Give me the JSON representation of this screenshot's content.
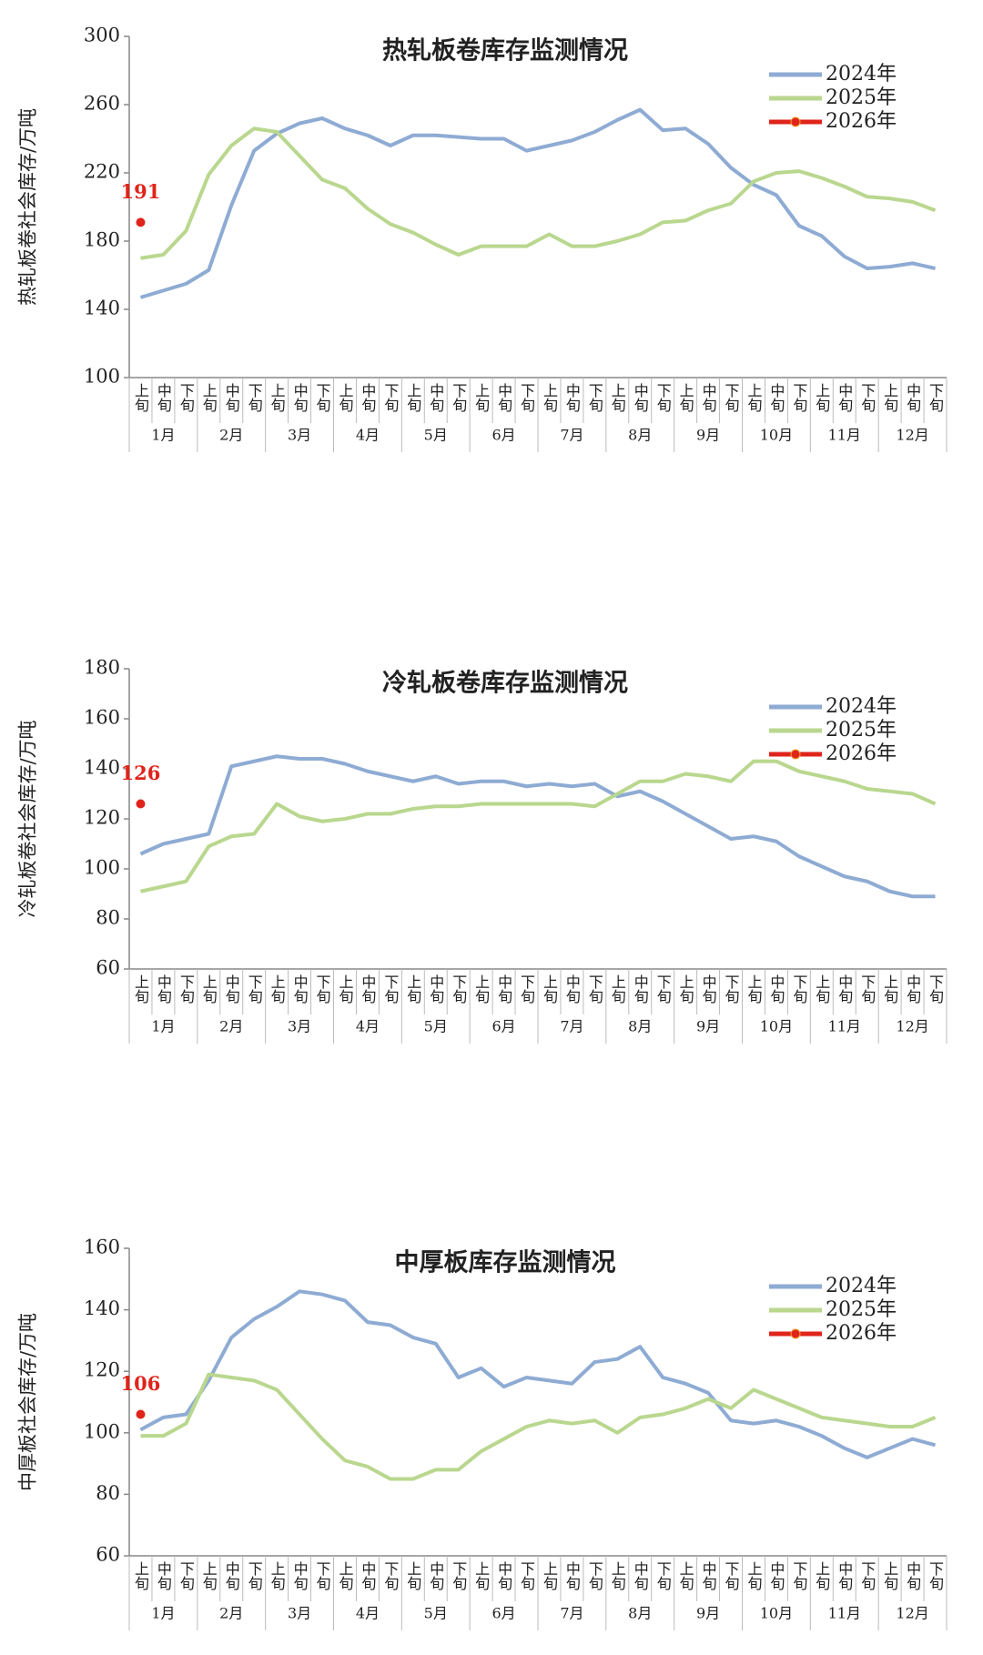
{
  "chart_data": [
    {
      "type": "line",
      "title": "热轧板卷库存监测情况",
      "y_label": "热轧板卷社会库存/万吨",
      "categories": [
        "上旬",
        "中旬",
        "下旬",
        "上旬",
        "中旬",
        "下旬",
        "上旬",
        "中旬",
        "下旬",
        "上旬",
        "中旬",
        "下旬",
        "上旬",
        "中旬",
        "下旬",
        "上旬",
        "中旬",
        "下旬",
        "上旬",
        "中旬",
        "下旬",
        "上旬",
        "中旬",
        "下旬",
        "上旬",
        "中旬",
        "下旬",
        "上旬",
        "中旬",
        "下旬",
        "上旬",
        "中旬",
        "下旬",
        "上旬",
        "中旬",
        "下旬"
      ],
      "months": [
        "1月",
        "2月",
        "3月",
        "4月",
        "5月",
        "6月",
        "7月",
        "8月",
        "9月",
        "10月",
        "11月",
        "12月"
      ],
      "ylim": [
        100,
        300
      ],
      "yticks": [
        100,
        140,
        180,
        220,
        260,
        300
      ],
      "legend": "top-right",
      "series": [
        {
          "name": "2024年",
          "color": "#8eabd3",
          "values": [
            147,
            151,
            155,
            163,
            201,
            233,
            243,
            249,
            252,
            246,
            242,
            236,
            242,
            242,
            241,
            240,
            240,
            233,
            236,
            239,
            244,
            251,
            257,
            245,
            246,
            237,
            223,
            213,
            207,
            189,
            183,
            171,
            164,
            165,
            167,
            164
          ]
        },
        {
          "name": "2025年",
          "color": "#b9d78e",
          "values": [
            170,
            172,
            186,
            219,
            236,
            246,
            244,
            230,
            216,
            211,
            199,
            190,
            185,
            178,
            172,
            177,
            177,
            177,
            184,
            177,
            177,
            180,
            184,
            191,
            192,
            198,
            202,
            215,
            220,
            221,
            217,
            212,
            206,
            205,
            203,
            198
          ]
        },
        {
          "name": "2026年",
          "color": "#e0241b",
          "values": [
            191,
            null,
            null,
            null,
            null,
            null,
            null,
            null,
            null,
            null,
            null,
            null,
            null,
            null,
            null,
            null,
            null,
            null,
            null,
            null,
            null,
            null,
            null,
            null,
            null,
            null,
            null,
            null,
            null,
            null,
            null,
            null,
            null,
            null,
            null,
            null
          ]
        }
      ]
    },
    {
      "type": "line",
      "title": "冷轧板卷库存监测情况",
      "y_label": "冷轧板卷社会库存/万吨",
      "categories": [
        "上旬",
        "中旬",
        "下旬",
        "上旬",
        "中旬",
        "下旬",
        "上旬",
        "中旬",
        "下旬",
        "上旬",
        "中旬",
        "下旬",
        "上旬",
        "中旬",
        "下旬",
        "上旬",
        "中旬",
        "下旬",
        "上旬",
        "中旬",
        "下旬",
        "上旬",
        "中旬",
        "下旬",
        "上旬",
        "中旬",
        "下旬",
        "上旬",
        "中旬",
        "下旬",
        "上旬",
        "中旬",
        "下旬",
        "上旬",
        "中旬",
        "下旬"
      ],
      "months": [
        "1月",
        "2月",
        "3月",
        "4月",
        "5月",
        "6月",
        "7月",
        "8月",
        "9月",
        "10月",
        "11月",
        "12月"
      ],
      "ylim": [
        60,
        180
      ],
      "yticks": [
        60,
        80,
        100,
        120,
        140,
        160,
        180
      ],
      "legend": "top-right",
      "series": [
        {
          "name": "2024年",
          "color": "#8eabd3",
          "values": [
            106,
            110,
            112,
            114,
            141,
            143,
            145,
            144,
            144,
            142,
            139,
            137,
            135,
            137,
            134,
            135,
            135,
            133,
            134,
            133,
            134,
            129,
            131,
            127,
            122,
            117,
            112,
            113,
            111,
            105,
            101,
            97,
            95,
            91,
            89,
            89
          ]
        },
        {
          "name": "2025年",
          "color": "#b9d78e",
          "values": [
            91,
            93,
            95,
            109,
            113,
            114,
            126,
            121,
            119,
            120,
            122,
            122,
            124,
            125,
            125,
            126,
            126,
            126,
            126,
            126,
            125,
            130,
            135,
            135,
            138,
            137,
            135,
            143,
            143,
            139,
            137,
            135,
            132,
            131,
            130,
            126
          ]
        },
        {
          "name": "2026年",
          "color": "#e0241b",
          "values": [
            126,
            null,
            null,
            null,
            null,
            null,
            null,
            null,
            null,
            null,
            null,
            null,
            null,
            null,
            null,
            null,
            null,
            null,
            null,
            null,
            null,
            null,
            null,
            null,
            null,
            null,
            null,
            null,
            null,
            null,
            null,
            null,
            null,
            null,
            null,
            null
          ]
        }
      ]
    },
    {
      "type": "line",
      "title": "中厚板库存监测情况",
      "y_label": "中厚板社会库存/万吨",
      "categories": [
        "上旬",
        "中旬",
        "下旬",
        "上旬",
        "中旬",
        "下旬",
        "上旬",
        "中旬",
        "下旬",
        "上旬",
        "中旬",
        "下旬",
        "上旬",
        "中旬",
        "下旬",
        "上旬",
        "中旬",
        "下旬",
        "上旬",
        "中旬",
        "下旬",
        "上旬",
        "中旬",
        "下旬",
        "上旬",
        "中旬",
        "下旬",
        "上旬",
        "中旬",
        "下旬",
        "上旬",
        "中旬",
        "下旬",
        "上旬",
        "中旬",
        "下旬"
      ],
      "months": [
        "1月",
        "2月",
        "3月",
        "4月",
        "5月",
        "6月",
        "7月",
        "8月",
        "9月",
        "10月",
        "11月",
        "12月"
      ],
      "ylim": [
        60,
        160
      ],
      "yticks": [
        60,
        80,
        100,
        120,
        140,
        160
      ],
      "legend": "top-right",
      "series": [
        {
          "name": "2024年",
          "color": "#8eabd3",
          "values": [
            101,
            105,
            106,
            117,
            131,
            137,
            141,
            146,
            145,
            143,
            136,
            135,
            131,
            129,
            118,
            121,
            115,
            118,
            117,
            116,
            123,
            124,
            128,
            118,
            116,
            113,
            104,
            103,
            104,
            102,
            99,
            95,
            92,
            95,
            98,
            96
          ]
        },
        {
          "name": "2025年",
          "color": "#b9d78e",
          "values": [
            99,
            99,
            103,
            119,
            118,
            117,
            114,
            106,
            98,
            91,
            89,
            85,
            85,
            88,
            88,
            94,
            98,
            102,
            104,
            103,
            104,
            100,
            105,
            106,
            108,
            111,
            108,
            114,
            111,
            108,
            105,
            104,
            103,
            102,
            102,
            105
          ]
        },
        {
          "name": "2026年",
          "color": "#e0241b",
          "values": [
            106,
            null,
            null,
            null,
            null,
            null,
            null,
            null,
            null,
            null,
            null,
            null,
            null,
            null,
            null,
            null,
            null,
            null,
            null,
            null,
            null,
            null,
            null,
            null,
            null,
            null,
            null,
            null,
            null,
            null,
            null,
            null,
            null,
            null,
            null,
            null
          ]
        }
      ]
    }
  ]
}
